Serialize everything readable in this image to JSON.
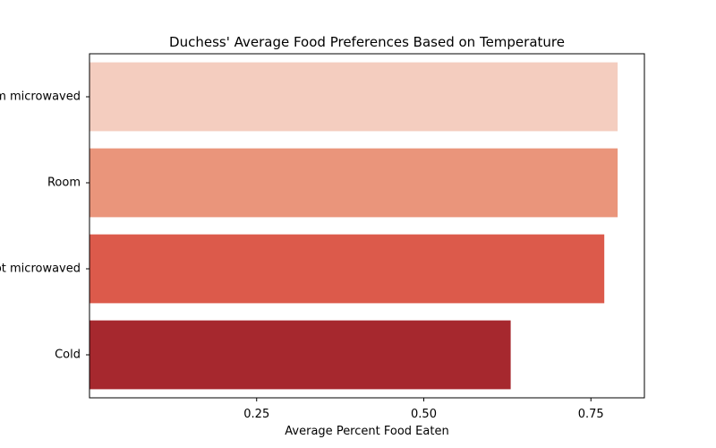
{
  "chart_data": {
    "type": "bar",
    "orientation": "horizontal",
    "title": "Duchess' Average Food Preferences Based on Temperature",
    "xlabel": "Average Percent Food Eaten",
    "ylabel": "",
    "xlim": [
      0,
      0.83
    ],
    "xticks": [
      0.25,
      0.5,
      0.75
    ],
    "xtick_labels": [
      "0.25",
      "0.50",
      "0.75"
    ],
    "categories": [
      "Warm microwaved",
      "Room",
      "Hot microwaved",
      "Cold"
    ],
    "values": [
      0.79,
      0.79,
      0.77,
      0.63
    ],
    "colors": [
      "#f4cdbf",
      "#ea957b",
      "#dc5a4b",
      "#a6282e"
    ],
    "grid": false,
    "legend": "none"
  }
}
